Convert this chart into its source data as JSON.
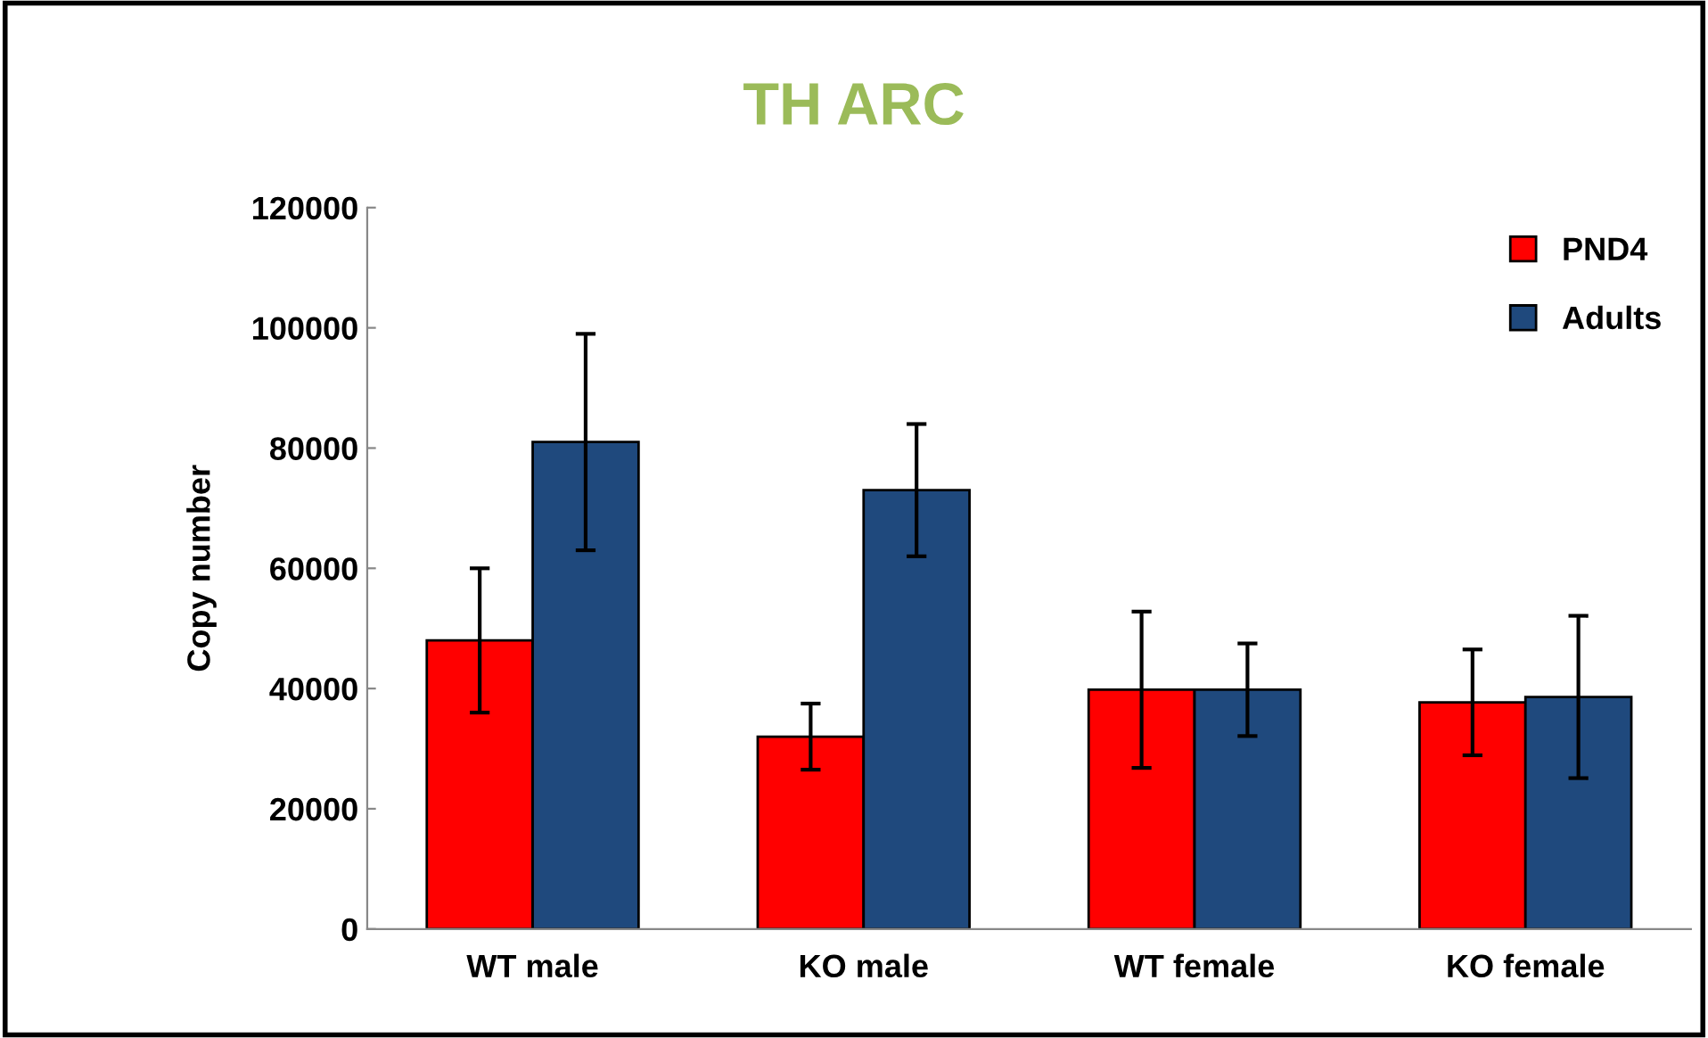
{
  "chart_data": {
    "type": "bar",
    "title": "TH ARC",
    "ylabel": "Copy number",
    "categories": [
      "WT male",
      "KO male",
      "WT female",
      "KO female"
    ],
    "series": [
      {
        "name": "PND4",
        "color": "#ff0000",
        "values": [
          48000,
          32000,
          39800,
          37700
        ],
        "errors": [
          12000,
          5500,
          13000,
          8800
        ]
      },
      {
        "name": "Adults",
        "color": "#1f497d",
        "values": [
          81000,
          73000,
          39800,
          38600
        ],
        "errors": [
          18000,
          11000,
          7700,
          13500
        ]
      }
    ],
    "ylim": [
      0,
      120000
    ],
    "yticks": [
      0,
      20000,
      40000,
      60000,
      80000,
      100000,
      120000
    ],
    "grid": false,
    "legend": "top right"
  }
}
